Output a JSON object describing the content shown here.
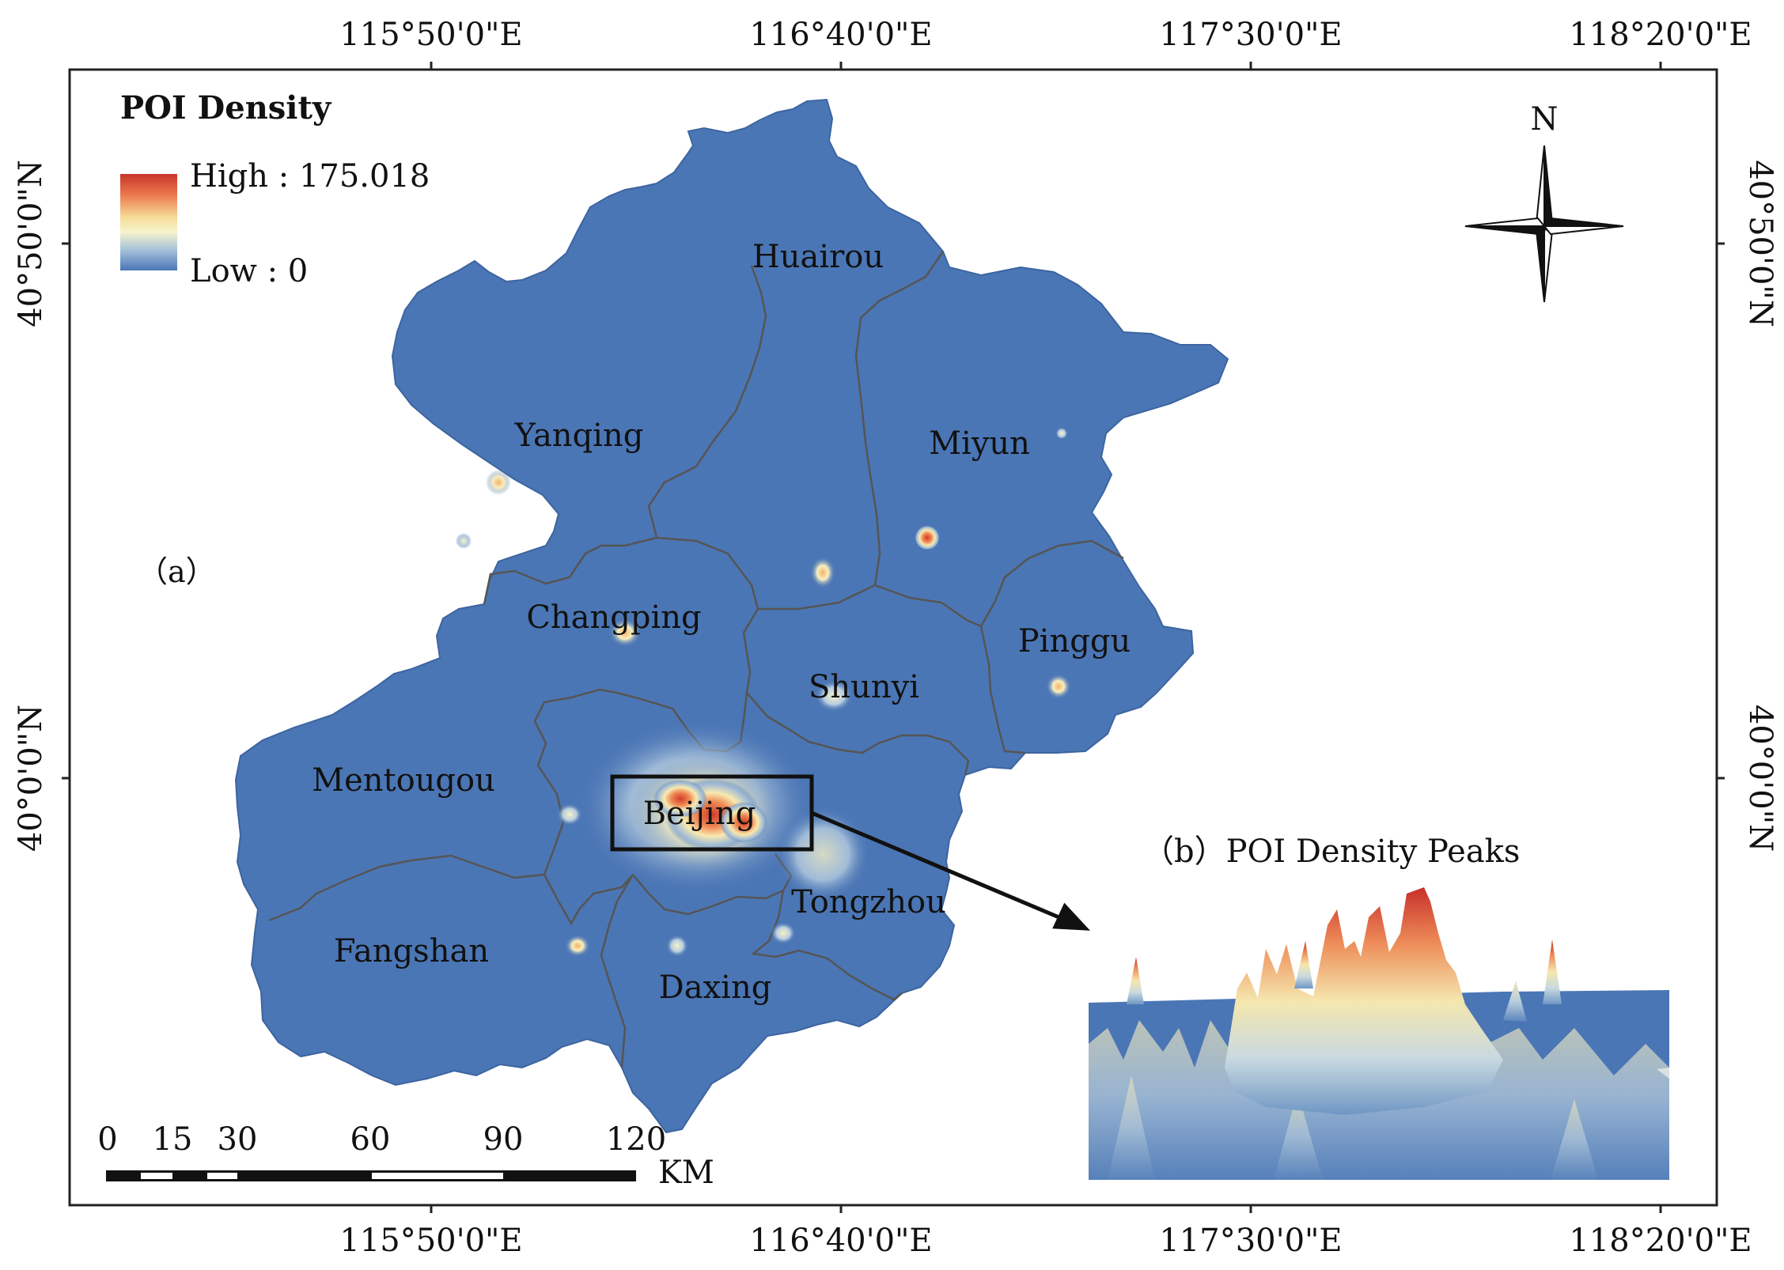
{
  "legend": {
    "title": "POI Density",
    "high_label": "High : 175.018",
    "low_label": "Low : 0",
    "colors": [
      "#c0392b",
      "#e8714a",
      "#f6d58d",
      "#f8f6c6",
      "#b9cfdc",
      "#4d7ab8"
    ]
  },
  "north_arrow": {
    "label": "N",
    "icon": "compass-rose-icon"
  },
  "panel_a_label": "（a）",
  "panel_b_label": "（b）POI Density Peaks",
  "axes": {
    "top": [
      "115°50'0\"E",
      "116°40'0\"E",
      "117°30'0\"E",
      "118°20'0\"E"
    ],
    "bottom": [
      "115°50'0\"E",
      "116°40'0\"E",
      "117°30'0\"E",
      "118°20'0\"E"
    ],
    "left": [
      "40°50'0\"N",
      "40°0'0\"N"
    ],
    "right": [
      "40°50'0\"N",
      "40°0'0\"N"
    ]
  },
  "districts": {
    "huairou": "Huairou",
    "yanqing": "Yanqing",
    "miyun": "Miyun",
    "changping": "Changping",
    "pinggu": "Pinggu",
    "shunyi": "Shunyi",
    "mentougou": "Mentougou",
    "beijing": "Beijing",
    "tongzhou": "Tongzhou",
    "fangshan": "Fangshan",
    "daxing": "Daxing"
  },
  "scale_bar": {
    "ticks": [
      "0",
      "15",
      "30",
      "60",
      "90",
      "120"
    ],
    "unit": "KM"
  },
  "map_fill_color": "#4b76b5"
}
